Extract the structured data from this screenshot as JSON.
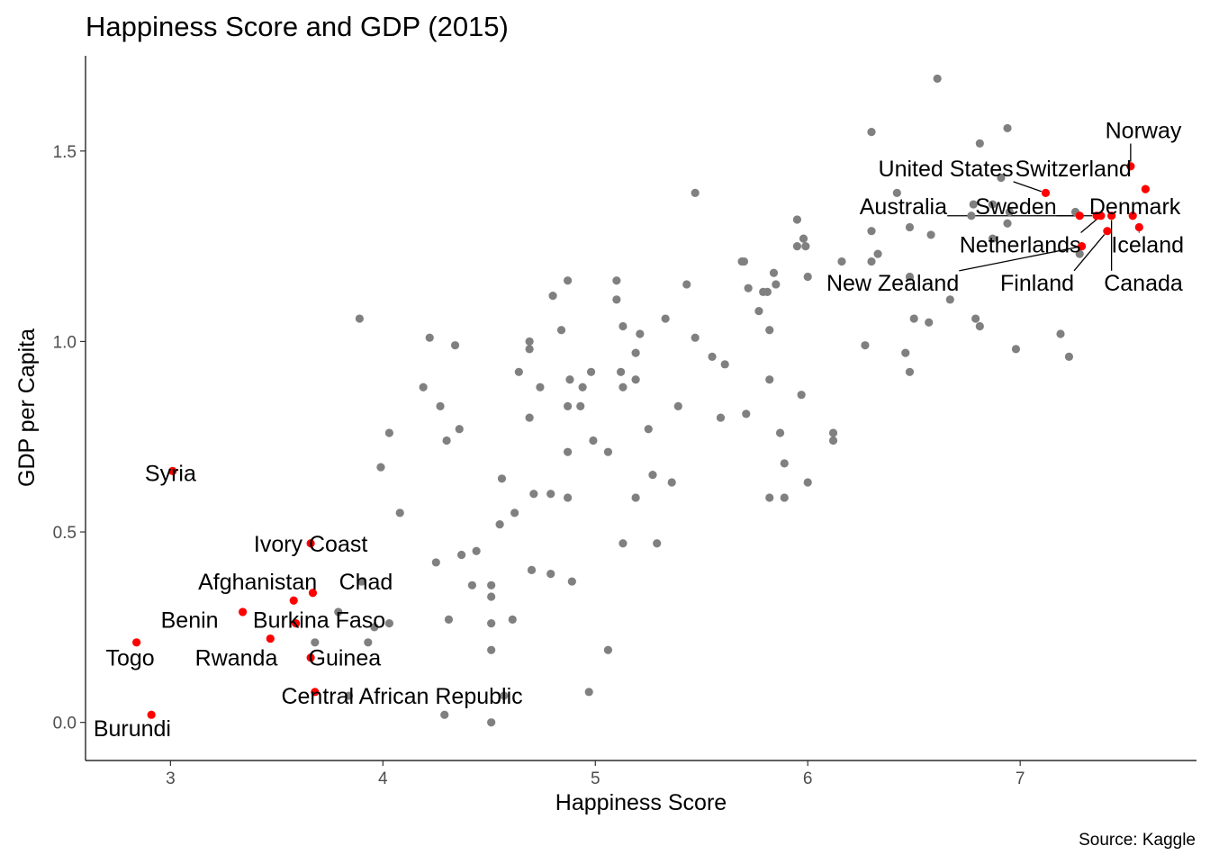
{
  "chart_data": {
    "type": "scatter",
    "title": "Happiness Score and GDP (2015)",
    "xlabel": "Happiness Score",
    "ylabel": "GDP per Capita",
    "caption": "Source: Kaggle",
    "xlim": [
      2.6,
      7.83
    ],
    "ylim": [
      -0.1,
      1.75
    ],
    "xticks": [
      3,
      4,
      5,
      6,
      7
    ],
    "yticks": [
      0.0,
      0.5,
      1.0,
      1.5
    ],
    "ytick_labels": [
      "0.0",
      "0.5",
      "1.0",
      "1.5"
    ],
    "grid": false,
    "colors": {
      "other": "#808080",
      "highlight": "#ff0000"
    },
    "other_points": [
      [
        6.61,
        1.69
      ],
      [
        6.94,
        1.56
      ],
      [
        6.3,
        1.55
      ],
      [
        6.81,
        1.52
      ],
      [
        6.91,
        1.43
      ],
      [
        6.87,
        1.36
      ],
      [
        6.95,
        1.34
      ],
      [
        6.94,
        1.31
      ],
      [
        6.42,
        1.39
      ],
      [
        6.48,
        1.3
      ],
      [
        6.3,
        1.29
      ],
      [
        6.58,
        1.28
      ],
      [
        6.33,
        1.23
      ],
      [
        6.3,
        1.21
      ],
      [
        6.16,
        1.21
      ],
      [
        7.28,
        1.23
      ],
      [
        7.26,
        1.34
      ],
      [
        6.77,
        1.33
      ],
      [
        6.78,
        1.36
      ],
      [
        6.87,
        1.27
      ],
      [
        6.48,
        1.17
      ],
      [
        6.67,
        1.11
      ],
      [
        6.79,
        1.06
      ],
      [
        6.81,
        1.04
      ],
      [
        6.5,
        1.06
      ],
      [
        6.57,
        1.05
      ],
      [
        6.27,
        0.99
      ],
      [
        6.46,
        0.97
      ],
      [
        6.48,
        0.92
      ],
      [
        6.98,
        0.98
      ],
      [
        7.19,
        1.02
      ],
      [
        7.23,
        0.96
      ],
      [
        5.47,
        1.39
      ],
      [
        5.95,
        1.32
      ],
      [
        5.98,
        1.27
      ],
      [
        5.95,
        1.25
      ],
      [
        6.0,
        1.17
      ],
      [
        5.99,
        1.25
      ],
      [
        5.7,
        1.21
      ],
      [
        5.69,
        1.21
      ],
      [
        5.84,
        1.18
      ],
      [
        5.85,
        1.15
      ],
      [
        5.72,
        1.14
      ],
      [
        5.79,
        1.13
      ],
      [
        5.77,
        1.08
      ],
      [
        5.81,
        1.13
      ],
      [
        5.43,
        1.15
      ],
      [
        5.82,
        1.03
      ],
      [
        5.82,
        0.9
      ],
      [
        5.97,
        0.86
      ],
      [
        5.55,
        0.96
      ],
      [
        5.61,
        0.94
      ],
      [
        5.47,
        1.01
      ],
      [
        5.59,
        0.8
      ],
      [
        5.71,
        0.81
      ],
      [
        5.87,
        0.76
      ],
      [
        5.89,
        0.68
      ],
      [
        5.82,
        0.59
      ],
      [
        5.89,
        0.59
      ],
      [
        6.0,
        0.63
      ],
      [
        6.12,
        0.76
      ],
      [
        6.12,
        0.74
      ],
      [
        4.87,
        1.16
      ],
      [
        4.8,
        1.12
      ],
      [
        5.1,
        1.16
      ],
      [
        5.1,
        1.11
      ],
      [
        5.13,
        1.04
      ],
      [
        5.21,
        1.02
      ],
      [
        5.19,
        0.97
      ],
      [
        5.12,
        0.92
      ],
      [
        5.13,
        0.88
      ],
      [
        5.19,
        0.9
      ],
      [
        5.33,
        1.06
      ],
      [
        4.84,
        1.03
      ],
      [
        4.69,
        1.0
      ],
      [
        4.69,
        0.98
      ],
      [
        4.64,
        0.92
      ],
      [
        4.74,
        0.88
      ],
      [
        4.88,
        0.9
      ],
      [
        4.98,
        0.92
      ],
      [
        4.94,
        0.88
      ],
      [
        4.93,
        0.83
      ],
      [
        4.87,
        0.83
      ],
      [
        4.69,
        0.8
      ],
      [
        4.87,
        0.71
      ],
      [
        4.99,
        0.74
      ],
      [
        5.06,
        0.71
      ],
      [
        5.25,
        0.77
      ],
      [
        5.27,
        0.65
      ],
      [
        5.36,
        0.63
      ],
      [
        5.39,
        0.83
      ],
      [
        5.19,
        0.59
      ],
      [
        5.13,
        0.47
      ],
      [
        5.29,
        0.47
      ],
      [
        4.56,
        0.64
      ],
      [
        4.71,
        0.6
      ],
      [
        4.79,
        0.6
      ],
      [
        4.87,
        0.59
      ],
      [
        4.62,
        0.55
      ],
      [
        4.55,
        0.52
      ],
      [
        4.7,
        0.4
      ],
      [
        4.79,
        0.39
      ],
      [
        4.89,
        0.37
      ],
      [
        4.44,
        0.45
      ],
      [
        4.37,
        0.44
      ],
      [
        4.42,
        0.36
      ],
      [
        4.51,
        0.36
      ],
      [
        4.51,
        0.33
      ],
      [
        4.25,
        0.42
      ],
      [
        4.31,
        0.27
      ],
      [
        4.51,
        0.26
      ],
      [
        4.61,
        0.27
      ],
      [
        4.51,
        0.19
      ],
      [
        5.06,
        0.19
      ],
      [
        4.57,
        0.07
      ],
      [
        4.97,
        0.08
      ],
      [
        4.29,
        0.02
      ],
      [
        4.51,
        0.0
      ],
      [
        3.89,
        1.06
      ],
      [
        4.22,
        1.01
      ],
      [
        4.34,
        0.99
      ],
      [
        4.19,
        0.88
      ],
      [
        4.27,
        0.83
      ],
      [
        4.36,
        0.77
      ],
      [
        4.3,
        0.74
      ],
      [
        4.03,
        0.76
      ],
      [
        3.99,
        0.67
      ],
      [
        4.08,
        0.55
      ],
      [
        3.9,
        0.37
      ],
      [
        4.03,
        0.26
      ],
      [
        3.96,
        0.25
      ],
      [
        3.93,
        0.21
      ],
      [
        3.79,
        0.29
      ],
      [
        3.68,
        0.21
      ],
      [
        3.84,
        0.07
      ]
    ],
    "highlight_points": [
      {
        "label": "Norway",
        "x": 7.52,
        "y": 1.46
      },
      {
        "label": "Switzerland",
        "x": 7.59,
        "y": 1.4
      },
      {
        "label": "United States",
        "x": 7.12,
        "y": 1.39
      },
      {
        "label": "Denmark",
        "x": 7.53,
        "y": 1.33
      },
      {
        "label": "Iceland",
        "x": 7.56,
        "y": 1.3
      },
      {
        "label": "Canada",
        "x": 7.43,
        "y": 1.33
      },
      {
        "label": "Sweden",
        "x": 7.36,
        "y": 1.33
      },
      {
        "label": "Australia",
        "x": 7.28,
        "y": 1.33
      },
      {
        "label": "Finland",
        "x": 7.41,
        "y": 1.29
      },
      {
        "label": "Netherlands",
        "x": 7.38,
        "y": 1.33
      },
      {
        "label": "New Zealand",
        "x": 7.29,
        "y": 1.25
      },
      {
        "label": "Syria",
        "x": 3.01,
        "y": 0.66
      },
      {
        "label": "Ivory Coast",
        "x": 3.66,
        "y": 0.47
      },
      {
        "label": "Chad",
        "x": 3.67,
        "y": 0.34
      },
      {
        "label": "Afghanistan",
        "x": 3.58,
        "y": 0.32
      },
      {
        "label": "Benin",
        "x": 3.34,
        "y": 0.29
      },
      {
        "label": "Burkina Faso",
        "x": 3.59,
        "y": 0.26
      },
      {
        "label": "Togo",
        "x": 2.84,
        "y": 0.21
      },
      {
        "label": "Rwanda",
        "x": 3.47,
        "y": 0.22
      },
      {
        "label": "Guinea",
        "x": 3.66,
        "y": 0.17
      },
      {
        "label": "Central African Republic",
        "x": 3.68,
        "y": 0.08
      },
      {
        "label": "Burundi",
        "x": 2.91,
        "y": 0.02
      }
    ],
    "annotations": [
      {
        "label": "Norway",
        "lx": 7.58,
        "ly": 1.555,
        "leader": true
      },
      {
        "label": "Switzerland",
        "lx": 7.25,
        "ly": 1.455,
        "leader": false
      },
      {
        "label": "United States",
        "lx": 6.65,
        "ly": 1.455,
        "leader": true
      },
      {
        "label": "Australia",
        "lx": 6.45,
        "ly": 1.355,
        "leader": true
      },
      {
        "label": "Sweden",
        "lx": 6.98,
        "ly": 1.355,
        "leader": true
      },
      {
        "label": "Denmark",
        "lx": 7.54,
        "ly": 1.355,
        "leader": true
      },
      {
        "label": "Netherlands",
        "lx": 7.0,
        "ly": 1.255,
        "leader": true
      },
      {
        "label": "Iceland",
        "lx": 7.6,
        "ly": 1.255,
        "leader": true
      },
      {
        "label": "New Zealand",
        "lx": 6.4,
        "ly": 1.155,
        "leader": true
      },
      {
        "label": "Finland",
        "lx": 7.08,
        "ly": 1.155,
        "leader": true
      },
      {
        "label": "Canada",
        "lx": 7.58,
        "ly": 1.155,
        "leader": true
      },
      {
        "label": "Syria",
        "lx": 3.0,
        "ly": 0.655,
        "leader": false
      },
      {
        "label": "Ivory Coast",
        "lx": 3.66,
        "ly": 0.47,
        "leader": false
      },
      {
        "label": "Afghanistan",
        "lx": 3.41,
        "ly": 0.37,
        "leader": false
      },
      {
        "label": "Chad",
        "lx": 3.92,
        "ly": 0.37,
        "leader": false
      },
      {
        "label": "Benin",
        "lx": 3.09,
        "ly": 0.27,
        "leader": false
      },
      {
        "label": "Burkina Faso",
        "lx": 3.7,
        "ly": 0.27,
        "leader": false
      },
      {
        "label": "Togo",
        "lx": 2.81,
        "ly": 0.17,
        "leader": false
      },
      {
        "label": "Rwanda",
        "lx": 3.31,
        "ly": 0.17,
        "leader": false
      },
      {
        "label": "Guinea",
        "lx": 3.82,
        "ly": 0.17,
        "leader": false
      },
      {
        "label": "Central African Republic",
        "lx": 4.09,
        "ly": 0.07,
        "leader": false
      },
      {
        "label": "Burundi",
        "lx": 2.82,
        "ly": -0.015,
        "leader": false
      }
    ]
  }
}
